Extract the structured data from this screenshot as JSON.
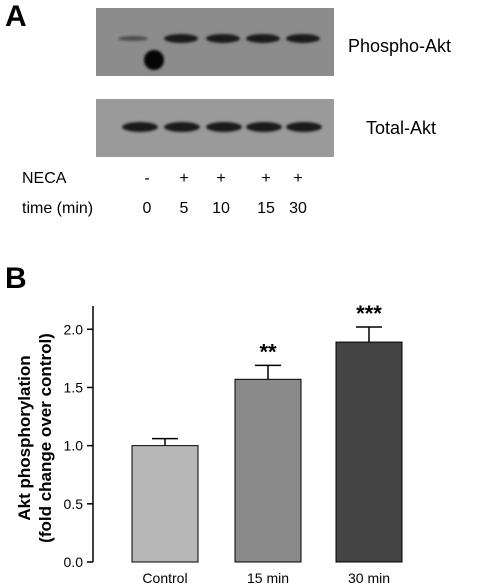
{
  "panel_a": {
    "letter": "A",
    "blots": [
      {
        "label": "Phospho-Akt"
      },
      {
        "label": "Total-Akt"
      }
    ],
    "rows": [
      {
        "label": "NECA",
        "values": [
          "-",
          "+",
          "+",
          "+",
          "+"
        ]
      },
      {
        "label": "time (min)",
        "values": [
          "0",
          "5",
          "10",
          "15",
          "30"
        ]
      }
    ]
  },
  "panel_b": {
    "letter": "B"
  },
  "chart_data": {
    "type": "bar",
    "categories": [
      "Control",
      "15 min",
      "30 min"
    ],
    "values": [
      1.0,
      1.57,
      1.89
    ],
    "errors": [
      0.06,
      0.12,
      0.13
    ],
    "annotations": [
      "",
      "**",
      "***"
    ],
    "bar_colors": [
      "#b8b8b8",
      "#8a8a8a",
      "#444444"
    ],
    "ylabel_line1": "Akt phosphorylation",
    "ylabel_line2": "(fold change over control)",
    "ylim": [
      0,
      2.2
    ],
    "yticks": [
      "0.0",
      "0.5",
      "1.0",
      "1.5",
      "2.0"
    ],
    "ytick_values": [
      0,
      0.5,
      1.0,
      1.5,
      2.0
    ]
  }
}
